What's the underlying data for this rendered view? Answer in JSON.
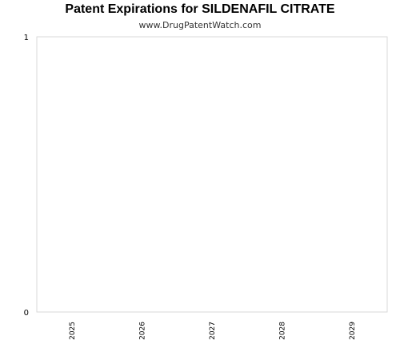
{
  "header": {
    "title": "Patent Expirations for SILDENAFIL CITRATE",
    "subtitle": "www.DrugPatentWatch.com"
  },
  "chart_data": {
    "type": "bar",
    "title": "Patent Expirations for SILDENAFIL CITRATE",
    "subtitle": "www.DrugPatentWatch.com",
    "categories": [
      "2025",
      "2026",
      "2027",
      "2028",
      "2029"
    ],
    "values": [
      0,
      0,
      0,
      0,
      0
    ],
    "xlabel": "",
    "ylabel": "",
    "ylim": [
      0,
      1
    ],
    "y_ticks": [
      "0",
      "1"
    ],
    "grid": false,
    "legend": "none",
    "colors": {
      "border": "#d9d9d9",
      "bar": "#4472c4"
    }
  }
}
